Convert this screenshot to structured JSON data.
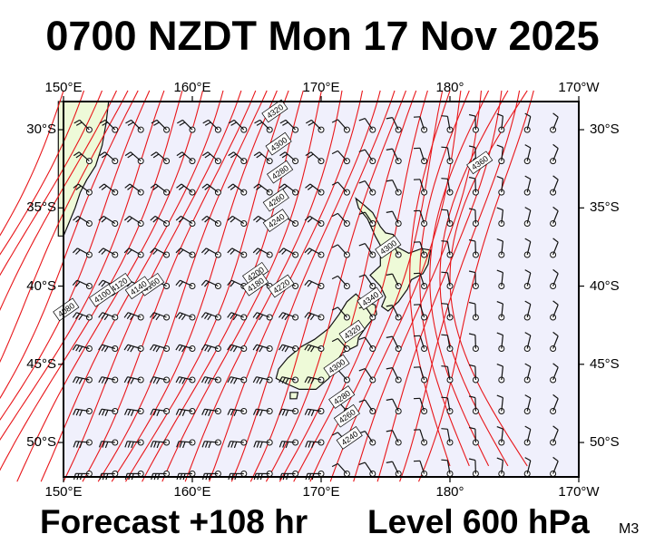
{
  "header": {
    "title": "0700 NZDT Mon 17 Nov 2025"
  },
  "footer": {
    "forecast": "Forecast +108 hr",
    "level": "Level 600 hPa",
    "model": "M3"
  },
  "map": {
    "extent": {
      "lon_min": 150,
      "lon_max": 190,
      "lat_min": -52.2,
      "lat_max": -28.2
    },
    "lon_ticks": [
      {
        "lon": 150,
        "label": "150°E"
      },
      {
        "lon": 160,
        "label": "160°E"
      },
      {
        "lon": 170,
        "label": "170°E"
      },
      {
        "lon": 180,
        "label": "180°"
      },
      {
        "lon": 190,
        "label": "170°W"
      }
    ],
    "lat_ticks": [
      {
        "lat": -30,
        "label": "30°S"
      },
      {
        "lat": -35,
        "label": "35°S"
      },
      {
        "lat": -40,
        "label": "40°S"
      },
      {
        "lat": -45,
        "label": "45°S"
      },
      {
        "lat": -50,
        "label": "50°S"
      }
    ],
    "colors": {
      "sea": "#f0f0fc",
      "land": "#eefad8",
      "contour": "#e8161a",
      "coast": "#111111",
      "barb": "#111111"
    },
    "contour_labels": [
      {
        "text": "4320",
        "lon": 166.4,
        "lat": -28.8
      },
      {
        "text": "4300",
        "lon": 166.7,
        "lat": -30.9
      },
      {
        "text": "4280",
        "lon": 166.8,
        "lat": -32.7
      },
      {
        "text": "4260",
        "lon": 166.5,
        "lat": -34.5
      },
      {
        "text": "4240",
        "lon": 166.5,
        "lat": -35.8
      },
      {
        "text": "4220",
        "lon": 166.9,
        "lat": -40.0
      },
      {
        "text": "4200",
        "lon": 164.9,
        "lat": -39.2
      },
      {
        "text": "4180",
        "lon": 164.9,
        "lat": -39.9
      },
      {
        "text": "4160",
        "lon": 156.8,
        "lat": -39.9
      },
      {
        "text": "4140",
        "lon": 155.8,
        "lat": -40.1
      },
      {
        "text": "4120",
        "lon": 154.3,
        "lat": -39.9
      },
      {
        "text": "4100",
        "lon": 153.0,
        "lat": -40.6
      },
      {
        "text": "4080",
        "lon": 150.2,
        "lat": -41.5
      },
      {
        "text": "4300",
        "lon": 175.2,
        "lat": -37.5
      },
      {
        "text": "4340",
        "lon": 173.8,
        "lat": -40.8
      },
      {
        "text": "4320",
        "lon": 172.4,
        "lat": -42.9
      },
      {
        "text": "4300",
        "lon": 171.2,
        "lat": -45.1
      },
      {
        "text": "4280",
        "lon": 171.6,
        "lat": -47.1
      },
      {
        "text": "4260",
        "lon": 172.0,
        "lat": -48.3
      },
      {
        "text": "4240",
        "lon": 172.2,
        "lat": -49.7
      },
      {
        "text": "4360",
        "lon": 182.3,
        "lat": -32.1
      }
    ]
  }
}
